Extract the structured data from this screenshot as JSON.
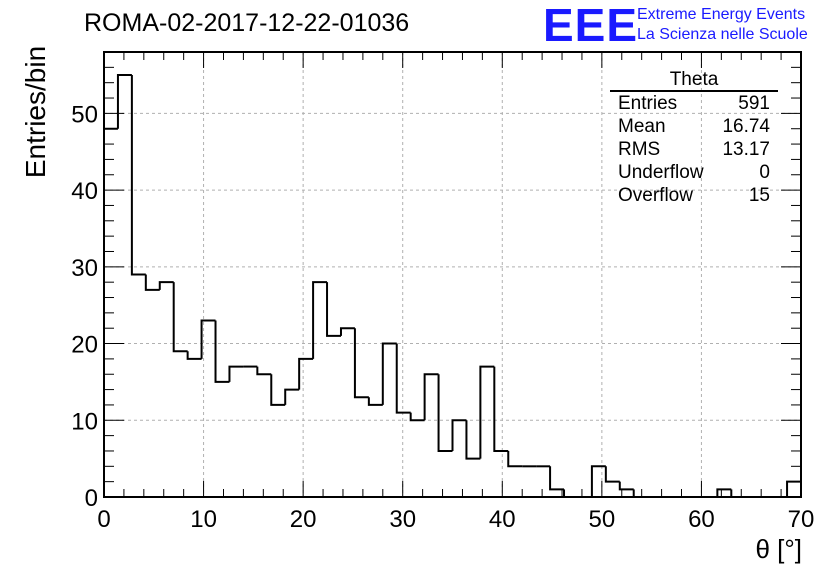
{
  "header": {
    "title": "ROMA-02-2017-12-22-01036",
    "logo_text": "EEE",
    "logo_line1": "Extreme Energy Events",
    "logo_line2": "La Scienza nelle Scuole"
  },
  "stats_box": {
    "title": "Theta",
    "rows": [
      {
        "label": "Entries",
        "value": "591"
      },
      {
        "label": "Mean",
        "value": "16.74"
      },
      {
        "label": "RMS",
        "value": "13.17"
      },
      {
        "label": "Underflow",
        "value": "0"
      },
      {
        "label": "Overflow",
        "value": "15"
      }
    ]
  },
  "chart_data": {
    "type": "bar",
    "style": "step-histogram",
    "bin_edges_start": 0,
    "bin_width": 1.4,
    "values": [
      48,
      55,
      29,
      27,
      28,
      19,
      18,
      23,
      15,
      17,
      17,
      16,
      12,
      14,
      18,
      28,
      21,
      22,
      13,
      12,
      20,
      11,
      10,
      16,
      6,
      10,
      5,
      17,
      6,
      4,
      4,
      4,
      1,
      0,
      0,
      4,
      2,
      1,
      0,
      0,
      0,
      0,
      0,
      0,
      1,
      0,
      0,
      0,
      0,
      2
    ],
    "xlabel": "θ [°]",
    "ylabel": "Entries/bin",
    "xlim": [
      0,
      70
    ],
    "ylim": [
      0,
      58
    ],
    "x_ticks": [
      "0",
      "10",
      "20",
      "30",
      "40",
      "50",
      "60",
      "70"
    ],
    "y_ticks": [
      "0",
      "10",
      "20",
      "30",
      "40",
      "50"
    ],
    "grid": true
  }
}
